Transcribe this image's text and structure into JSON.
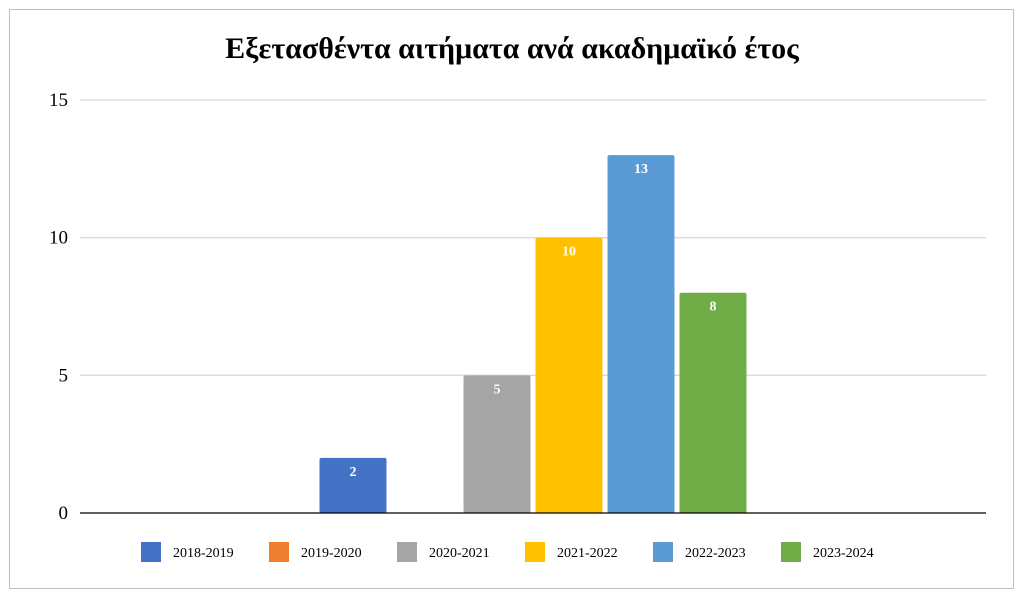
{
  "chart_data": {
    "type": "bar",
    "title": "Εξετασθέντα αιτήματα ανά ακαδημαϊκό έτος",
    "xlabel": "",
    "ylabel": "",
    "ylim": [
      0,
      15
    ],
    "yticks": [
      0,
      5,
      10,
      15
    ],
    "grid": true,
    "legend_position": "bottom",
    "categories": [
      "2018-2019",
      "2019-2020",
      "2020-2021",
      "2021-2022",
      "2022-2023",
      "2023-2024"
    ],
    "values": [
      2,
      0,
      5,
      10,
      13,
      8
    ],
    "colors": [
      "#4472c4",
      "#ed7d31",
      "#a5a5a5",
      "#ffc000",
      "#5b9bd5",
      "#70ad47"
    ]
  }
}
